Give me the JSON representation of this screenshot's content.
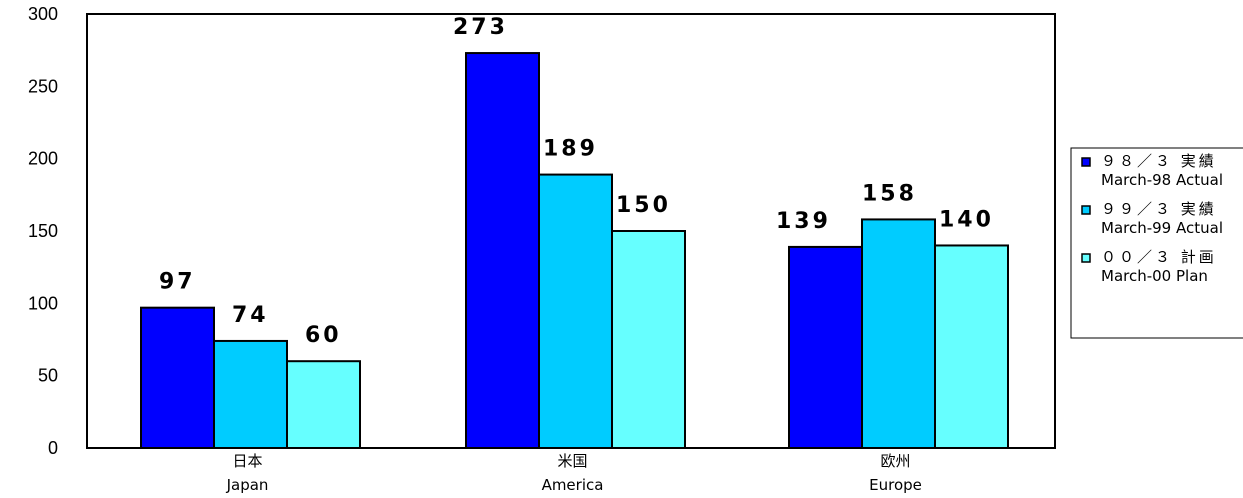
{
  "chart_data": {
    "type": "bar",
    "categories": [
      {
        "ja": "日本",
        "en": "Japan"
      },
      {
        "ja": "米国",
        "en": "America"
      },
      {
        "ja": "欧州",
        "en": "Europe"
      }
    ],
    "series": [
      {
        "name_ja": "９８／３ 実績",
        "name_en": "March-98 Actual",
        "color": "#0000ff",
        "values": [
          97,
          273,
          139
        ]
      },
      {
        "name_ja": "９９／３ 実績",
        "name_en": "March-99 Actual",
        "color": "#00ccff",
        "values": [
          74,
          189,
          158
        ]
      },
      {
        "name_ja": "００／３ 計画",
        "name_en": "March-00 Plan",
        "color": "#66ffff",
        "values": [
          60,
          150,
          140
        ]
      }
    ],
    "ylim": [
      0,
      300
    ],
    "yticks": [
      0,
      50,
      100,
      150,
      200,
      250,
      300
    ],
    "data_labels": true,
    "legend_position": "right",
    "grid": false
  }
}
